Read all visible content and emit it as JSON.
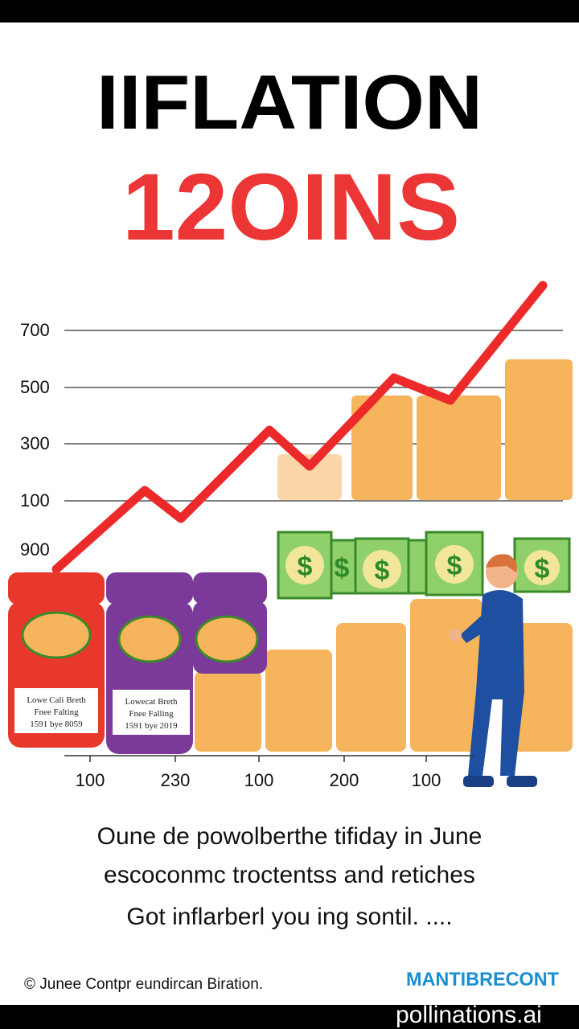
{
  "header": {
    "title": "IIFLATION",
    "subtitle": "12OINS"
  },
  "illustration": {
    "y_labels": [
      "700",
      "500",
      "300",
      "100",
      "900"
    ],
    "x_labels": [
      "100",
      "230",
      "100",
      "200",
      "100"
    ],
    "jars": [
      {
        "lines": [
          "Lowe Cali Breth",
          "Fnee Falting",
          "1591 bye 8059"
        ]
      },
      {
        "lines": [
          "Lowecat Breth",
          "Fnee Falling",
          "1591 bye 2019"
        ]
      }
    ]
  },
  "caption": {
    "lines": [
      "Oune de powolberthe tifiday in June",
      "escoconmc troctentss and retiches",
      "Got inflarberl you ing sontil. ...."
    ]
  },
  "footer": {
    "copyright": "© Junee Contpr eundircan Biration.",
    "brand": "MANTIBRECONT",
    "watermark": "pollinations.ai"
  }
}
